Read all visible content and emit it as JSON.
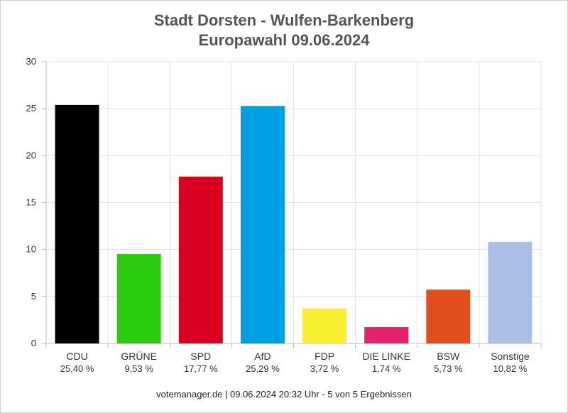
{
  "chart_data": {
    "type": "bar",
    "title": "Stadt Dorsten - Wulfen-Barkenberg",
    "subtitle": "Europawahl 09.06.2024",
    "categories": [
      "CDU",
      "GRÜNE",
      "SPD",
      "AfD",
      "FDP",
      "DIE LINKE",
      "BSW",
      "Sonstige"
    ],
    "values": [
      25.4,
      9.53,
      17.77,
      25.29,
      3.72,
      1.74,
      5.73,
      10.82
    ],
    "value_labels": [
      "25,40 %",
      "9,53 %",
      "17,77 %",
      "25,29 %",
      "3,72 %",
      "1,74 %",
      "5,73 %",
      "10,82 %"
    ],
    "colors": [
      "#000000",
      "#2ecc10",
      "#d9001f",
      "#009fe1",
      "#f9ed32",
      "#e3236e",
      "#e24f1f",
      "#abbee4"
    ],
    "ylim": [
      0,
      30
    ],
    "yticks": [
      "0",
      "5",
      "10",
      "15",
      "20",
      "25",
      "30"
    ],
    "grid": true
  },
  "footer": "votemanager.de | 09.06.2024 20:32 Uhr - 5 von 5 Ergebnissen"
}
